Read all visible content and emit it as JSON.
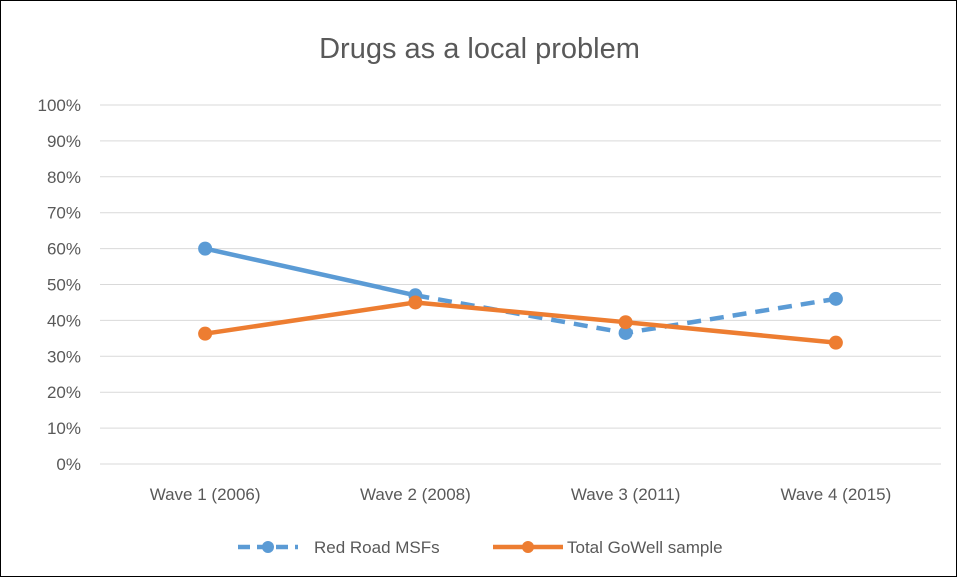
{
  "chart_data": {
    "type": "line",
    "title": "Drugs as a local problem",
    "categories": [
      "Wave 1 (2006)",
      "Wave 2 (2008)",
      "Wave 3 (2011)",
      "Wave 4 (2015)"
    ],
    "y_ticks": [
      "0%",
      "10%",
      "20%",
      "30%",
      "40%",
      "50%",
      "60%",
      "70%",
      "80%",
      "90%",
      "100%"
    ],
    "ylim": [
      0,
      100
    ],
    "grid": true,
    "legend_position": "bottom",
    "series": [
      {
        "name": "Red Road MSFs",
        "values": [
          60,
          47,
          36.5,
          46
        ],
        "color": "#5B9BD5",
        "note": "solid line from Wave 1 to Wave 2, dashed afterwards"
      },
      {
        "name": "Total GoWell sample",
        "values": [
          36.3,
          45,
          39.5,
          33.8
        ],
        "color": "#ED7D31"
      }
    ]
  }
}
